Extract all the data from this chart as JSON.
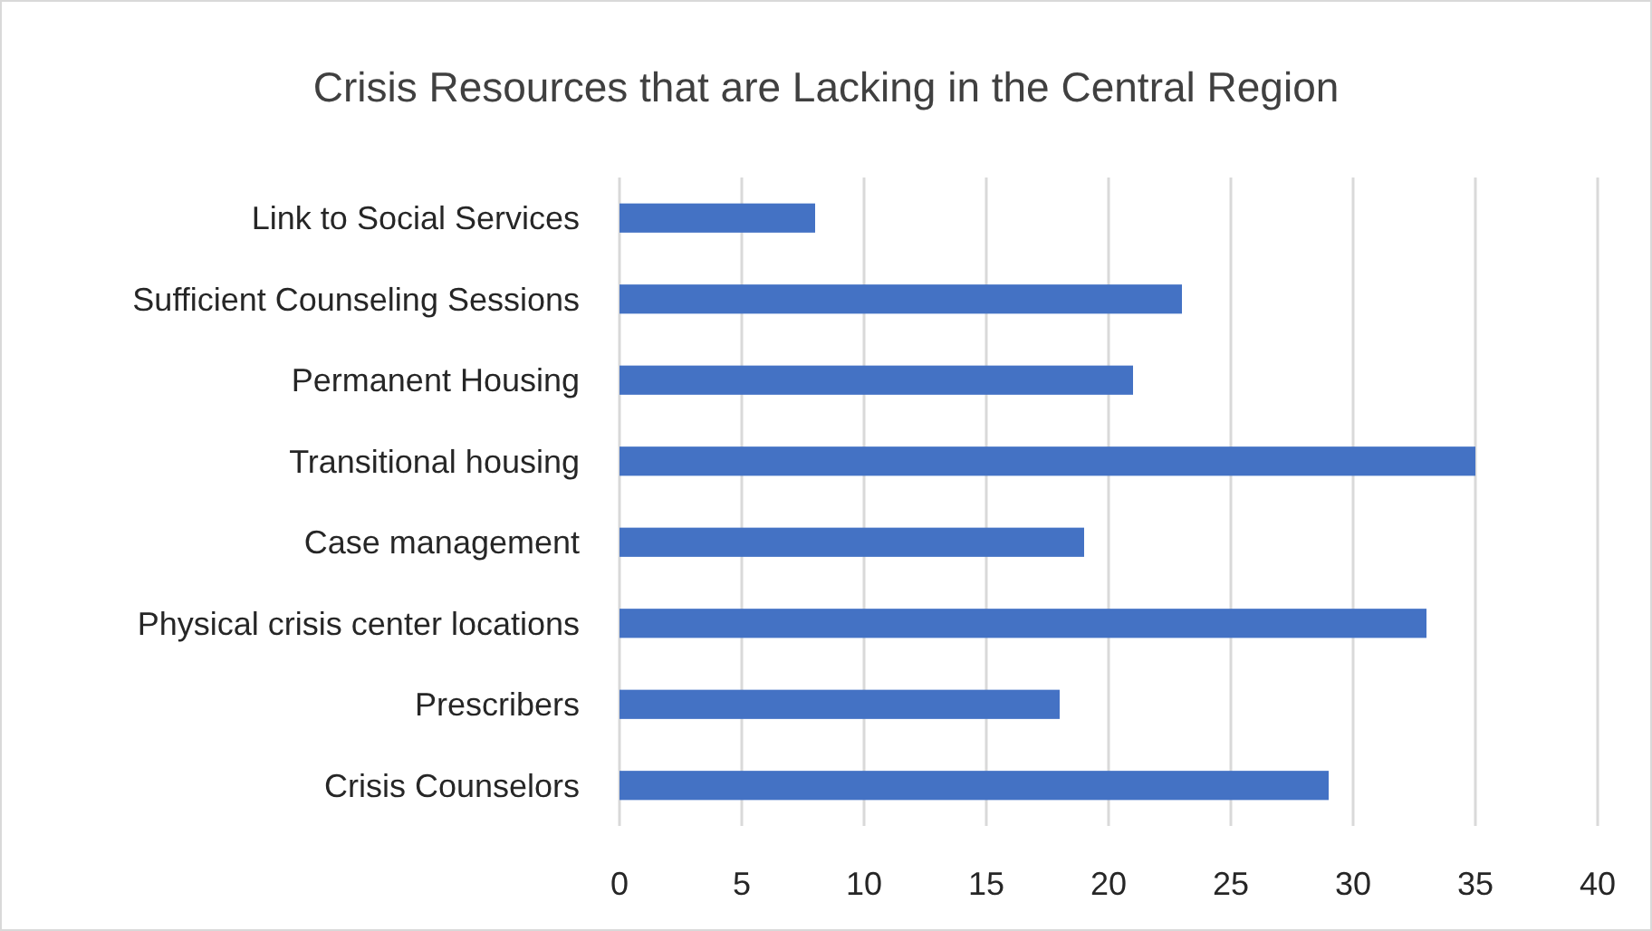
{
  "chart_data": {
    "type": "bar",
    "orientation": "horizontal",
    "title": "Crisis Resources that are Lacking in the Central Region",
    "categories": [
      "Link to Social Services",
      "Sufficient Counseling Sessions",
      "Permanent Housing",
      "Transitional housing",
      "Case management",
      "Physical crisis center locations",
      "Prescribers",
      "Crisis Counselors"
    ],
    "values": [
      8,
      23,
      21,
      35,
      19,
      33,
      18,
      29
    ],
    "color": "#4472c4",
    "xlim": [
      0,
      40
    ],
    "xticks": [
      0,
      5,
      10,
      15,
      20,
      25,
      30,
      35,
      40
    ],
    "grid": "x"
  }
}
